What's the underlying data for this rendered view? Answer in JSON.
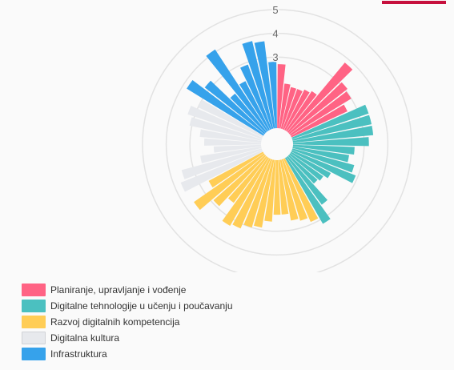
{
  "chart_data": {
    "type": "polar-bar",
    "r_max": 5,
    "r_ticks": [
      3,
      4,
      5
    ],
    "grid": true,
    "legend_position": "bottom-left",
    "categories": [
      {
        "name": "Planiranje, upravljanje i vođenje",
        "color": "#ff6384",
        "values": [
          2.7,
          1.9,
          1.8,
          1.8,
          1.9,
          2.0,
          3.8,
          3.1,
          3.0,
          2.6
        ]
      },
      {
        "name": "Digitalne tehnologije u učenju i poučavanju",
        "color": "#4bc0c0",
        "values": [
          3.4,
          3.4,
          3.4,
          3.2,
          2.6,
          2.4,
          2.7,
          2.9,
          1.9,
          1.7,
          1.6,
          2.5,
          3.2
        ]
      },
      {
        "name": "Razvoj digitalnih kompetencija",
        "color": "#ffcd56",
        "values": [
          2.9,
          2.7,
          2.6,
          2.3,
          2.3,
          2.6,
          2.9,
          3.0,
          3.2,
          3.3,
          2.4,
          2.9,
          3.6,
          2.6
        ]
      },
      {
        "name": "Digitalna kultura",
        "color": "#e7e9ed",
        "values": [
          3.7,
          3.5,
          2.6,
          2.0,
          2.4,
          2.6,
          3.1,
          3.3,
          3.0
        ]
      },
      {
        "name": "Infrastruktura",
        "color": "#36a2eb",
        "values": [
          3.8,
          3.2,
          2.1,
          4.1,
          2.3,
          2.9,
          3.8,
          3.7,
          2.8
        ]
      }
    ]
  }
}
